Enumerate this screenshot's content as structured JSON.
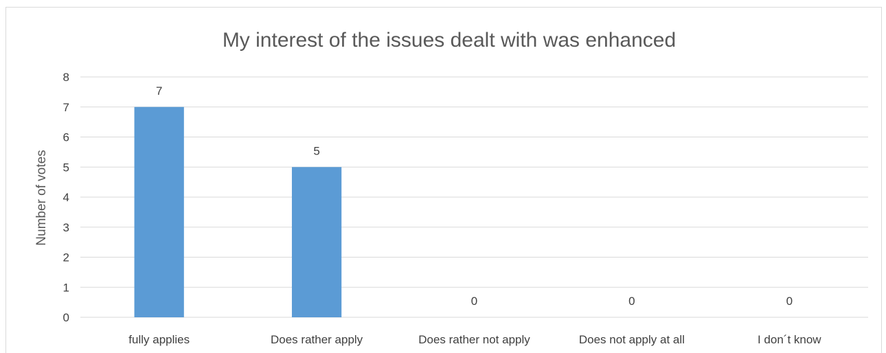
{
  "chart_data": {
    "type": "bar",
    "title": "My interest of the issues dealt with was enhanced",
    "xlabel": "",
    "ylabel": "Number of votes",
    "categories": [
      "fully applies",
      "Does rather apply",
      "Does rather not apply",
      "Does not apply at all",
      "I don´t know"
    ],
    "values": [
      7,
      5,
      0,
      0,
      0
    ],
    "data_labels": [
      "7",
      "5",
      "0",
      "0",
      "0"
    ],
    "ylim": [
      0,
      8
    ],
    "yticks": [
      0,
      1,
      2,
      3,
      4,
      5,
      6,
      7,
      8
    ],
    "grid": true,
    "legend": "none",
    "bar_color": "#5b9bd5",
    "grid_color": "#d9d9d9",
    "text_color": "#404040",
    "title_color": "#595959"
  }
}
